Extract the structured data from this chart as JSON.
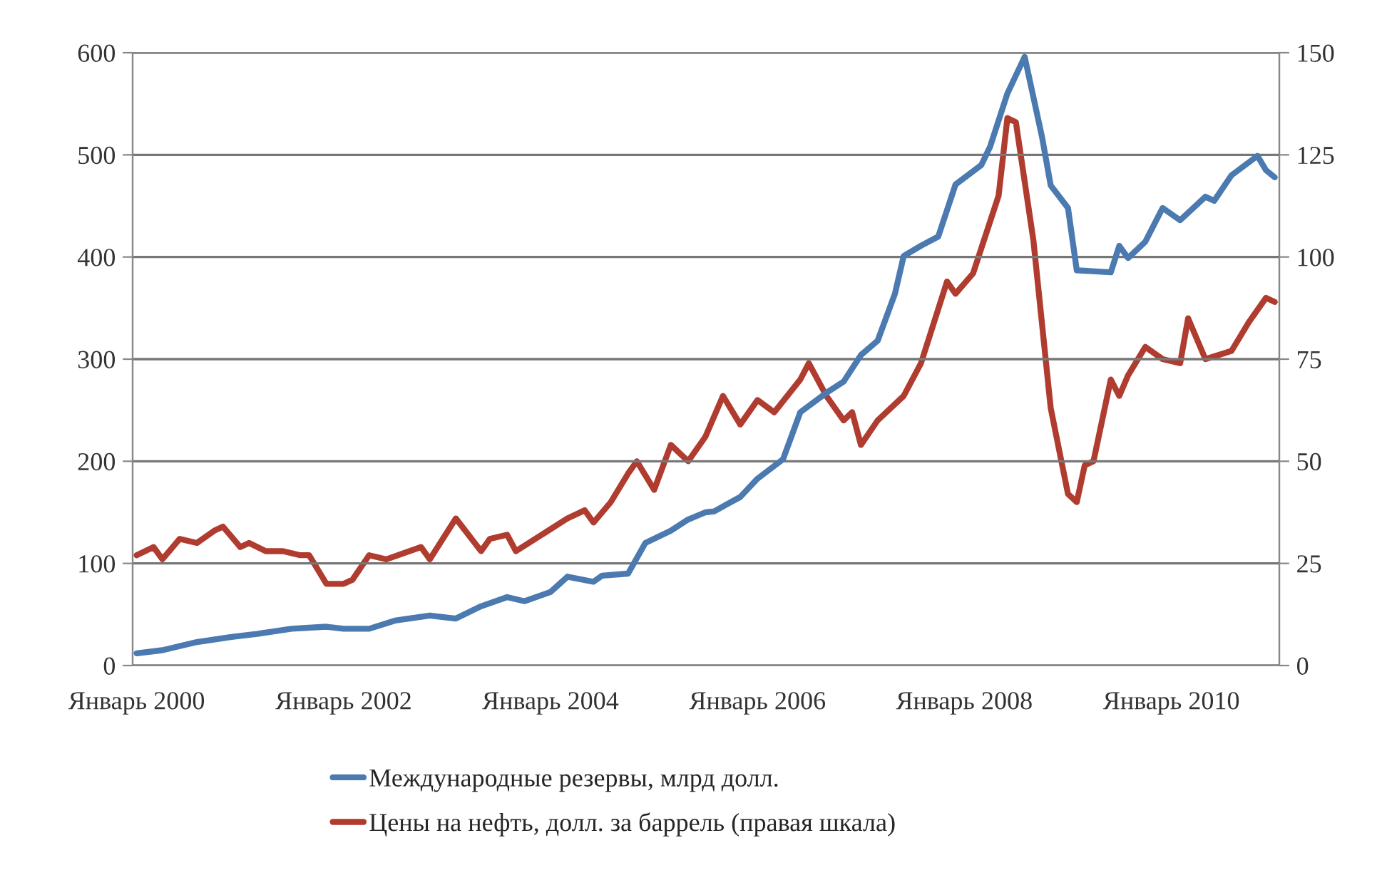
{
  "chart_data": {
    "type": "line",
    "xlim": [
      "2000-01-01",
      "2011-01-31"
    ],
    "xticks": [
      {
        "value": "2000-01",
        "label": "Январь 2000"
      },
      {
        "value": "2002-01",
        "label": "Январь 2002"
      },
      {
        "value": "2004-01",
        "label": "Январь 2004"
      },
      {
        "value": "2006-01",
        "label": "Январь 2006"
      },
      {
        "value": "2008-01",
        "label": "Январь 2008"
      },
      {
        "value": "2010-01",
        "label": "Январь 2010"
      }
    ],
    "ylim": [
      0,
      600
    ],
    "yticks": [
      0,
      100,
      200,
      300,
      400,
      500,
      600
    ],
    "y2lim": [
      0,
      150
    ],
    "y2ticks": [
      0,
      25,
      50,
      75,
      100,
      125,
      150
    ],
    "grid": "y",
    "legend": "bottom",
    "marker": "none",
    "line_style": "solid",
    "series": [
      {
        "name": "Международные резервы, млрд долл.",
        "color": "#4a7ab0",
        "x": [
          "2000-01",
          "2000-04",
          "2000-08",
          "2000-12",
          "2001-03",
          "2001-07",
          "2001-11",
          "2002-01",
          "2002-04",
          "2002-07",
          "2002-11",
          "2003-02",
          "2003-05",
          "2003-08",
          "2003-10",
          "2004-01",
          "2004-03",
          "2004-06",
          "2004-07",
          "2004-10",
          "2004-12",
          "2005-03",
          "2005-05",
          "2005-07",
          "2005-08",
          "2005-11",
          "2006-01",
          "2006-04",
          "2006-06",
          "2006-09",
          "2006-11",
          "2007-01",
          "2007-03",
          "2007-05",
          "2007-06",
          "2007-08",
          "2007-10",
          "2007-12",
          "2008-03",
          "2008-04",
          "2008-06",
          "2008-08",
          "2008-10",
          "2008-11",
          "2009-01",
          "2009-02",
          "2009-06",
          "2009-07",
          "2009-08",
          "2009-10",
          "2009-12",
          "2010-02",
          "2010-05",
          "2010-06",
          "2010-08",
          "2010-11",
          "2010-12",
          "2011-01"
        ],
        "values": [
          12,
          15,
          23,
          28,
          31,
          36,
          38,
          36,
          36,
          44,
          49,
          46,
          58,
          67,
          63,
          72,
          87,
          82,
          88,
          90,
          120,
          132,
          143,
          150,
          151,
          165,
          183,
          202,
          248,
          267,
          278,
          304,
          318,
          364,
          401,
          411,
          420,
          471,
          490,
          508,
          560,
          596,
          518,
          470,
          448,
          387,
          385,
          411,
          399,
          415,
          448,
          436,
          459,
          455,
          480,
          499,
          485,
          478
        ]
      },
      {
        "name": "Цены на нефть, долл. за баррель (правая шкала)",
        "color": "#b03c30",
        "axis": "y2",
        "x": [
          "2000-01",
          "2000-03",
          "2000-04",
          "2000-06",
          "2000-08",
          "2000-10",
          "2000-11",
          "2001-01",
          "2001-02",
          "2001-04",
          "2001-06",
          "2001-08",
          "2001-09",
          "2001-11",
          "2002-01",
          "2002-02",
          "2002-04",
          "2002-06",
          "2002-10",
          "2002-11",
          "2003-02",
          "2003-05",
          "2003-06",
          "2003-08",
          "2003-09",
          "2003-12",
          "2004-03",
          "2004-05",
          "2004-06",
          "2004-08",
          "2004-10",
          "2004-11",
          "2005-01",
          "2005-03",
          "2005-05",
          "2005-07",
          "2005-09",
          "2005-11",
          "2006-01",
          "2006-03",
          "2006-06",
          "2006-07",
          "2006-09",
          "2006-11",
          "2006-12",
          "2007-01",
          "2007-03",
          "2007-06",
          "2007-08",
          "2007-11",
          "2007-12",
          "2008-02",
          "2008-05",
          "2008-06",
          "2008-07",
          "2008-09",
          "2008-11",
          "2009-01",
          "2009-02",
          "2009-03",
          "2009-04",
          "2009-06",
          "2009-07",
          "2009-08",
          "2009-10",
          "2009-12",
          "2010-02",
          "2010-03",
          "2010-05",
          "2010-08",
          "2010-10",
          "2010-12",
          "2011-01"
        ],
        "values": [
          27,
          29,
          26,
          31,
          30,
          33,
          34,
          29,
          30,
          28,
          28,
          27,
          27,
          20,
          20,
          21,
          27,
          26,
          29,
          26,
          36,
          28,
          31,
          32,
          28,
          32,
          36,
          38,
          35,
          40,
          47,
          50,
          43,
          54,
          50,
          56,
          66,
          59,
          65,
          62,
          70,
          74,
          66,
          60,
          62,
          54,
          60,
          66,
          74,
          94,
          91,
          96,
          115,
          134,
          133,
          104,
          63,
          42,
          40,
          49,
          50,
          70,
          66,
          71,
          78,
          75,
          74,
          85,
          75,
          77,
          84,
          90,
          89
        ]
      }
    ]
  }
}
